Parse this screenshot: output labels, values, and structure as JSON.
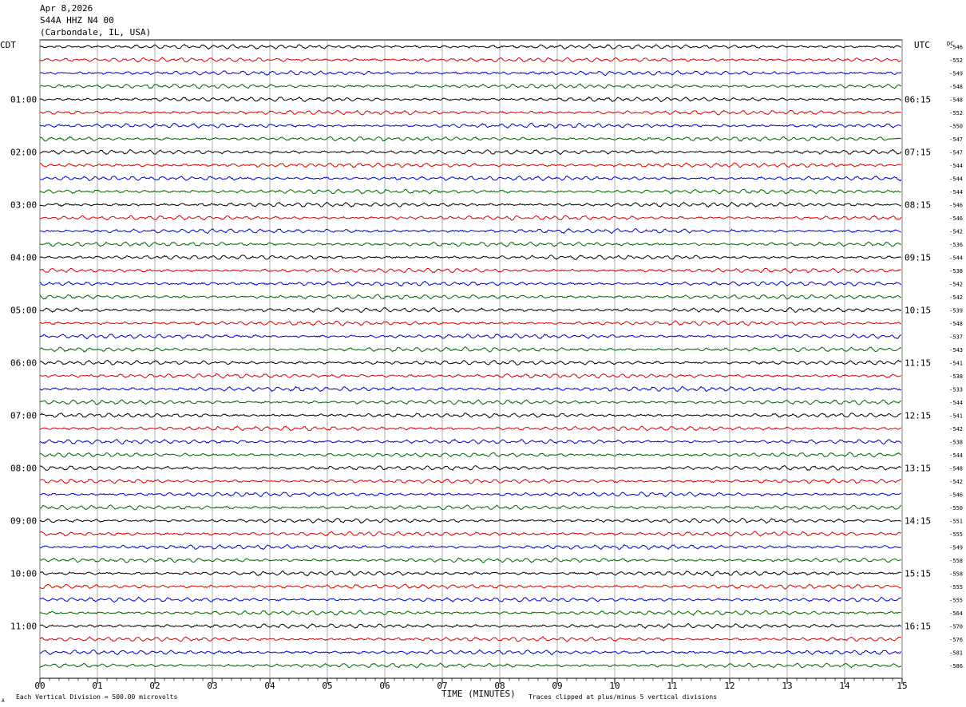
{
  "header": {
    "date": "Apr 8,2026",
    "station": "S44A HHZ N4 00",
    "location": "(Carbondale, IL, USA)"
  },
  "left_tz": "CDT",
  "right_tz": "UTC",
  "dc_label": "DC",
  "footer": {
    "scale": "Each Vertical Division =  500.00 microvolts",
    "xlabel": "TIME (MINUTES)",
    "clip_note": "Traces clipped at plus/minus 5 vertical divisions",
    "corner_mark": "A"
  },
  "chart_data": {
    "type": "line",
    "title": "",
    "xlabel": "TIME (MINUTES)",
    "ylabel": "",
    "x_ticks": [
      "00",
      "01",
      "02",
      "03",
      "04",
      "05",
      "06",
      "07",
      "08",
      "09",
      "10",
      "11",
      "12",
      "13",
      "14",
      "15"
    ],
    "xlim": [
      0,
      15
    ],
    "grid": true,
    "trace_colors": [
      "#000000",
      "#dd0000",
      "#0000cc",
      "#006400"
    ],
    "left_hour_labels": [
      "01:00",
      "02:00",
      "03:00",
      "04:00",
      "05:00",
      "06:00",
      "07:00",
      "08:00",
      "09:00",
      "10:00",
      "11:00"
    ],
    "right_hour_labels": [
      "06:15",
      "07:15",
      "08:15",
      "09:15",
      "10:15",
      "11:15",
      "12:15",
      "13:15",
      "14:15",
      "15:15",
      "16:15"
    ],
    "dc_offsets": [
      -546,
      -552,
      -549,
      -548,
      -548,
      -552,
      -550,
      -547,
      -547,
      -544,
      -544,
      -544,
      -546,
      -546,
      -542,
      -536,
      -544,
      -538,
      -542,
      -542,
      -539,
      -548,
      -537,
      -543,
      -541,
      -538,
      -533,
      -544,
      -541,
      -542,
      -538,
      -544,
      -548,
      -542,
      -546,
      -550,
      -551,
      -555,
      -549,
      -558,
      -558,
      -555,
      -555,
      -564,
      -570,
      -576,
      -581,
      -586
    ]
  }
}
